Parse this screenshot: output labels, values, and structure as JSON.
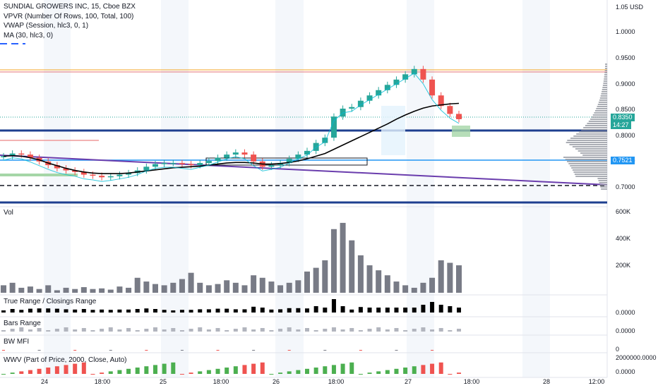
{
  "legend": {
    "title": "SUNDIAL GROWERS INC, 15, Cboe BZX",
    "vpvr": "VPVR (Number Of Rows, 100, Total, 100)",
    "vwap": "VWAP (Session, hlc3, 0, 1)",
    "ma": "MA (30, hlc3, 0)"
  },
  "panes": {
    "vol": "Vol",
    "true_range": "True Range / Closings Range",
    "bars_range": "Bars Range",
    "bw_mfi": "BW MFI",
    "wwv": "WWV (Part of Price, 2000, Close, Auto)"
  },
  "price_axis": {
    "currency_label": "1.05 USD",
    "ticks": [
      "1.0000",
      "0.9500",
      "0.9000",
      "0.8500",
      "0.8000",
      "0.7500",
      "0.7000"
    ],
    "last_price": "0.8350",
    "countdown": "14:27",
    "level_tag": "0.7521"
  },
  "volume_axis": {
    "ticks": [
      "600K",
      "400K",
      "200K"
    ]
  },
  "indicator_axis": {
    "true_range_tick": "0.0000",
    "bars_range_tick": "0.0000",
    "bw_mfi_tick": "0",
    "wwv_top_tick": "2000000.0000",
    "wwv_bottom_tick": "0.0000"
  },
  "time_axis": {
    "labels": [
      "24",
      "18:00",
      "25",
      "18:00",
      "26",
      "18:00",
      "27",
      "18:00",
      "28",
      "12:00"
    ]
  },
  "colors": {
    "up": "#26a69a",
    "down": "#ef5350",
    "volume": "#787b86",
    "accent_blue": "#2962ff",
    "level_blue": "#1e3f8f",
    "vwap": "#00bcd4",
    "ma": "#000000",
    "purple": "#6a3dad"
  },
  "chart_data": {
    "type": "line",
    "title": "SUNDIAL GROWERS INC, 15, Cboe BZX",
    "ylim": [
      0.68,
      1.05
    ],
    "series": [
      {
        "name": "Price",
        "values": [
          0.765,
          0.77,
          0.768,
          0.762,
          0.755,
          0.748,
          0.742,
          0.738,
          0.735,
          0.73,
          0.728,
          0.725,
          0.727,
          0.73,
          0.733,
          0.738,
          0.745,
          0.75,
          0.752,
          0.752,
          0.75,
          0.748,
          0.752,
          0.756,
          0.762,
          0.768,
          0.772,
          0.768,
          0.755,
          0.745,
          0.748,
          0.752,
          0.76,
          0.768,
          0.775,
          0.79,
          0.8,
          0.84,
          0.855,
          0.858,
          0.87,
          0.88,
          0.89,
          0.9,
          0.91,
          0.92,
          0.93,
          0.91,
          0.88,
          0.86,
          0.845,
          0.835
        ]
      },
      {
        "name": "MA (30, hlc3, 0)",
        "values": [
          0.765,
          0.766,
          0.765,
          0.762,
          0.758,
          0.752,
          0.747,
          0.742,
          0.738,
          0.735,
          0.733,
          0.732,
          0.732,
          0.732,
          0.733,
          0.735,
          0.737,
          0.739,
          0.741,
          0.743,
          0.744,
          0.745,
          0.746,
          0.748,
          0.75,
          0.752,
          0.753,
          0.753,
          0.752,
          0.75,
          0.75,
          0.751,
          0.753,
          0.756,
          0.76,
          0.765,
          0.77,
          0.778,
          0.786,
          0.794,
          0.802,
          0.81,
          0.818,
          0.826,
          0.835,
          0.843,
          0.85,
          0.856,
          0.86,
          0.862,
          0.864,
          0.865
        ]
      }
    ],
    "volume": [
      60,
      80,
      40,
      50,
      30,
      60,
      20,
      40,
      30,
      45,
      30,
      35,
      25,
      50,
      40,
      120,
      90,
      70,
      60,
      80,
      110,
      160,
      80,
      60,
      70,
      100,
      80,
      60,
      140,
      120,
      90,
      60,
      80,
      100,
      170,
      200,
      260,
      510,
      560,
      420,
      300,
      220,
      180,
      140,
      90,
      60,
      40,
      80,
      120,
      260,
      240,
      220
    ],
    "volume_ylim": [
      0,
      650000
    ]
  }
}
